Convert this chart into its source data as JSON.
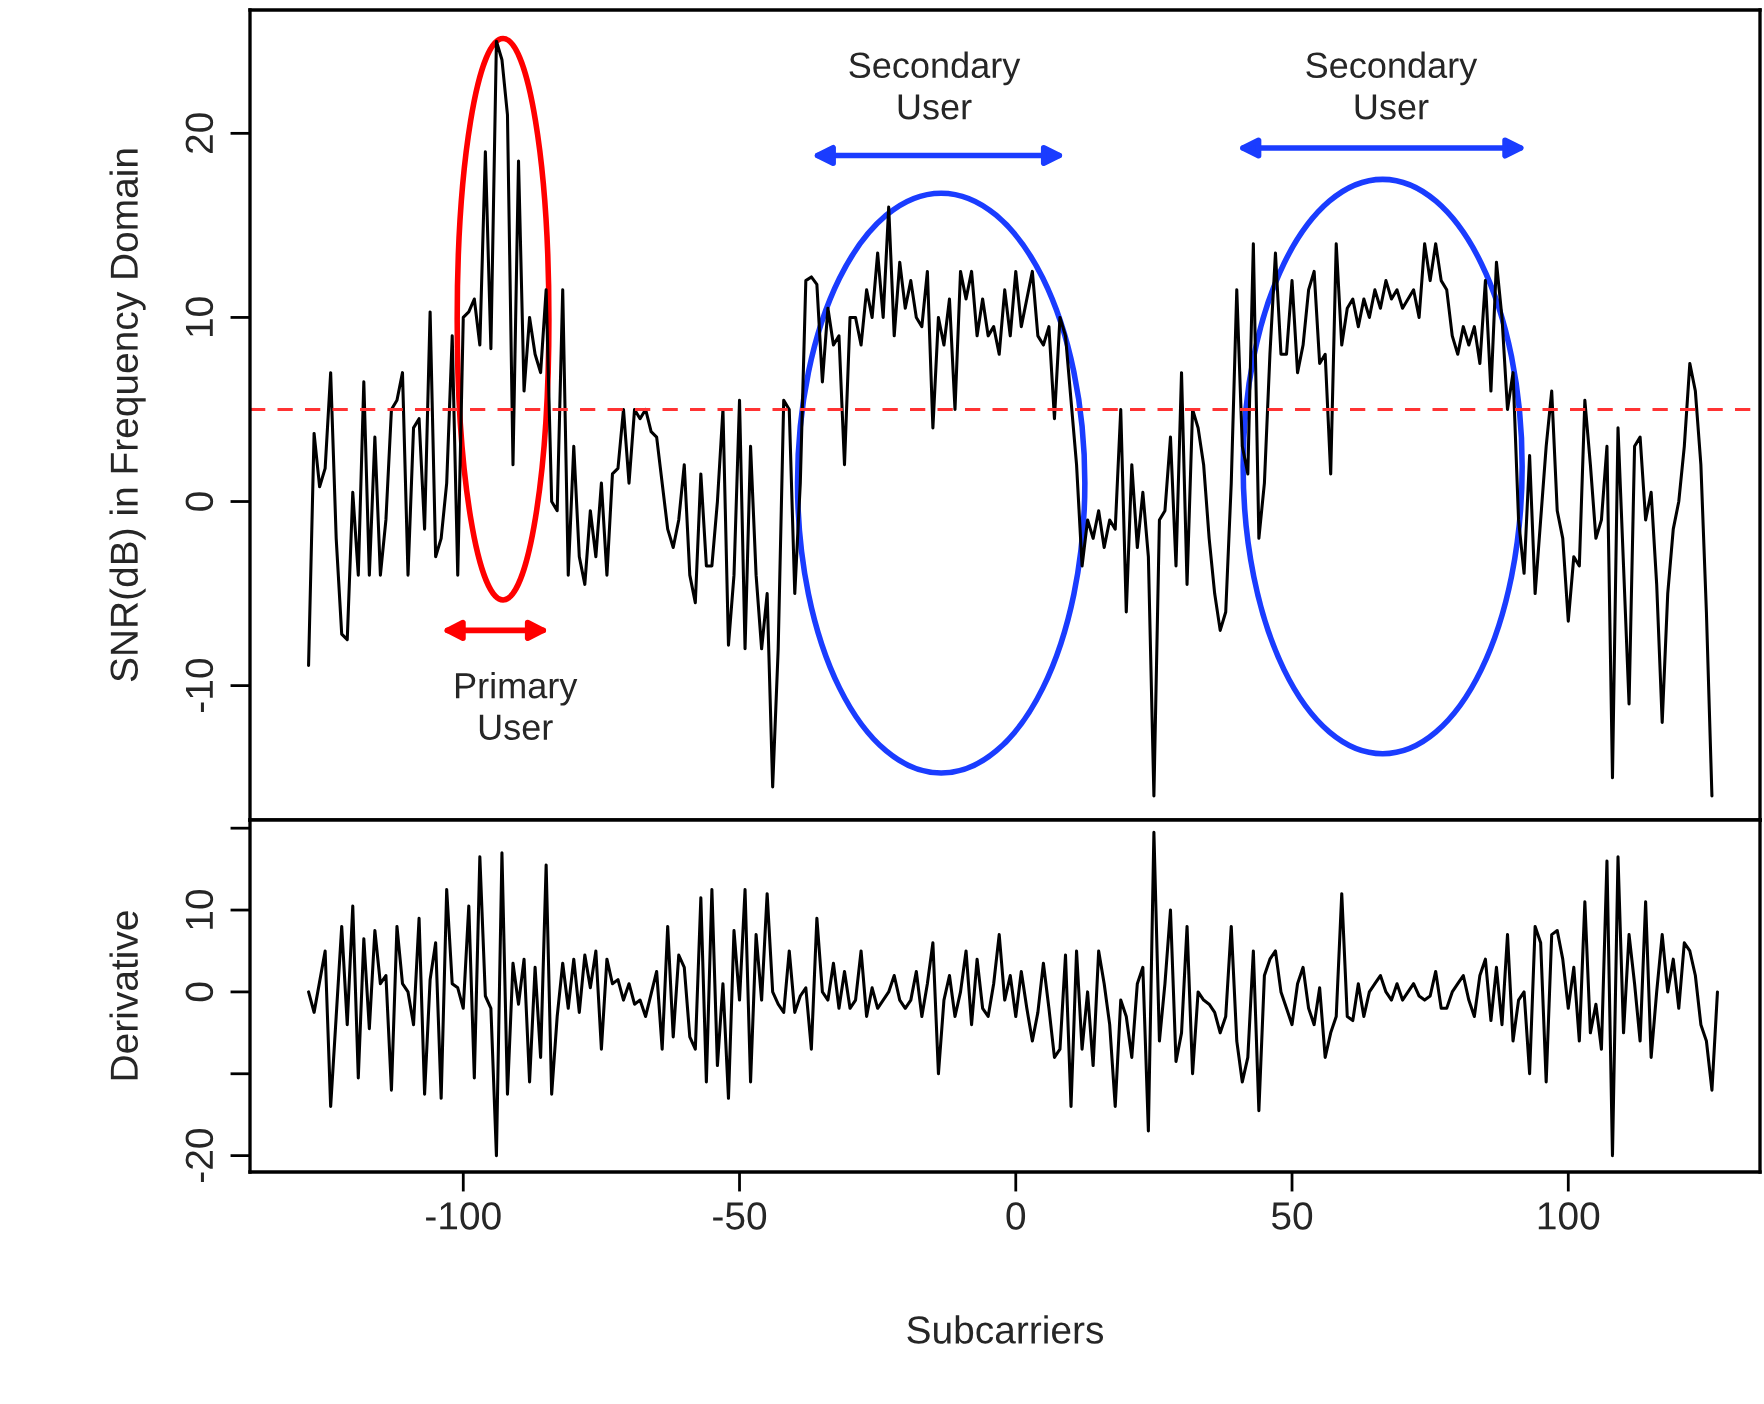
{
  "chart_data": [
    {
      "type": "line",
      "ylabel": "SNR(dB) in Frequency Domain",
      "xlim": [
        -138.6,
        134.7
      ],
      "ylim": [
        -17.3,
        26.7
      ],
      "yticks": [
        -10,
        0,
        10,
        20
      ],
      "tick_labels": "y",
      "grid": false,
      "legend": false,
      "series": [
        {
          "color": "#000000",
          "x": [
            -128,
            -127,
            -126,
            -125,
            -124,
            -123,
            -122,
            -121,
            -120,
            -119,
            -118,
            -117,
            -116,
            -115,
            -114,
            -113,
            -112,
            -111,
            -110,
            -109,
            -108,
            -107,
            -106,
            -105,
            -104,
            -103,
            -102,
            -101,
            -100,
            -99,
            -98,
            -97,
            -96,
            -95,
            -94,
            -93,
            -92,
            -91,
            -90,
            -89,
            -88,
            -87,
            -86,
            -85,
            -84,
            -83,
            -82,
            -81,
            -80,
            -79,
            -78,
            -77,
            -76,
            -75,
            -74,
            -73,
            -72,
            -71,
            -70,
            -69,
            -68,
            -67,
            -66,
            -65,
            -63,
            -62,
            -61,
            -60,
            -59,
            -58,
            -57,
            -56,
            -55,
            -54,
            -53,
            -52,
            -51,
            -50,
            -49,
            -48,
            -47,
            -46,
            -45,
            -44,
            -43,
            -42,
            -41,
            -40,
            -39,
            -38,
            -37,
            -36,
            -35,
            -34,
            -33,
            -32,
            -31,
            -30,
            -29,
            -28,
            -27,
            -26,
            -25,
            -24,
            -23,
            -22,
            -21,
            -20,
            -19,
            -18,
            -17,
            -16,
            -15,
            -14,
            -13,
            -12,
            -11,
            -10,
            -9,
            -8,
            -7,
            -6,
            -5,
            -4,
            -3,
            -2,
            -1,
            0,
            1,
            2,
            3,
            4,
            5,
            6,
            7,
            8,
            9,
            10,
            11,
            12,
            13,
            14,
            15,
            16,
            17,
            18,
            19,
            20,
            21,
            22,
            23,
            24,
            25,
            26,
            27,
            28,
            29,
            30,
            31,
            32,
            33,
            34,
            35,
            36,
            37,
            38,
            39,
            40,
            41,
            42,
            43,
            44,
            45,
            46,
            47,
            48,
            49,
            50,
            51,
            52,
            53,
            54,
            55,
            56,
            57,
            58,
            59,
            60,
            61,
            62,
            63,
            64,
            65,
            66,
            67,
            68,
            69,
            70,
            71,
            72,
            73,
            74,
            75,
            76,
            77,
            78,
            79,
            80,
            81,
            82,
            83,
            84,
            85,
            86,
            87,
            88,
            89,
            90,
            91,
            92,
            93,
            94,
            95,
            96,
            97,
            98,
            99,
            100,
            101,
            102,
            103,
            104,
            105,
            106,
            107,
            108,
            109,
            110,
            111,
            112,
            113,
            114,
            115,
            116,
            117,
            118,
            119,
            120,
            121,
            122,
            123,
            124,
            125,
            126
          ],
          "values": [
            -8.9,
            3.7,
            0.8,
            1.8,
            7,
            -2,
            -7.2,
            -7.5,
            0.5,
            -4,
            6.5,
            -4,
            3.5,
            -4,
            -1,
            5,
            5.5,
            7,
            -4,
            4,
            4.5,
            -1.5,
            10.3,
            -3,
            -2,
            1,
            9,
            -4,
            10,
            10.3,
            11,
            8.5,
            19,
            8.3,
            25,
            24,
            21,
            2,
            18.5,
            6,
            10,
            8,
            7,
            11.5,
            0,
            -0.5,
            11.5,
            -4,
            3,
            -3,
            -4.5,
            -0.5,
            -3,
            1,
            -4,
            1.5,
            1.8,
            5,
            1,
            5,
            4.5,
            5,
            3.8,
            3.5,
            -1.5,
            -2.5,
            -1,
            2,
            -4,
            -5.5,
            1.5,
            -3.5,
            -3.5,
            0,
            5,
            -7.8,
            -4,
            5.5,
            -8,
            3,
            -4,
            -8,
            -5,
            -15.5,
            -8,
            5.5,
            5,
            -5,
            1,
            12,
            12.2,
            11.8,
            6.5,
            10.5,
            8.5,
            9,
            2,
            10,
            10,
            8.5,
            11.5,
            10,
            13.5,
            10,
            16,
            9,
            13,
            10.5,
            12,
            10,
            9.5,
            12.5,
            4,
            10,
            8.5,
            11,
            5,
            12.5,
            11,
            12.5,
            9,
            11,
            9,
            9.5,
            8,
            11.5,
            9,
            12.5,
            9.5,
            11,
            12.5,
            9,
            8.5,
            9.5,
            4.5,
            10,
            9,
            5.5,
            2,
            -3.5,
            -1,
            -2,
            -0.5,
            -2.5,
            -1,
            -1.5,
            5,
            -6,
            2,
            -2.5,
            0.5,
            -3,
            -16,
            -1,
            -0.5,
            3.5,
            -3.5,
            7,
            -4.5,
            5,
            4,
            2,
            -2,
            -5,
            -7,
            -6,
            1,
            11.5,
            3,
            1.5,
            14,
            -2,
            1,
            8,
            13.5,
            8,
            8,
            12,
            7,
            8.5,
            11.5,
            12.5,
            7.5,
            8,
            1.5,
            14,
            8.5,
            10.5,
            11,
            9.5,
            11,
            10,
            11.5,
            10.5,
            12,
            11,
            11.5,
            10.5,
            11,
            11.5,
            10,
            14,
            12,
            14,
            12,
            11.5,
            9,
            8,
            9.5,
            8.5,
            9.5,
            7.5,
            12,
            6,
            13,
            10,
            5,
            7,
            -1,
            -3.9,
            2.5,
            -5,
            -1,
            3,
            6,
            -0.5,
            -2,
            -6.5,
            -3,
            -3.5,
            5.5,
            2,
            -2,
            -1,
            3,
            -15,
            4,
            -3.5,
            -11,
            3,
            3.5,
            -1,
            0.5,
            -4.5,
            -12,
            -5,
            -1.5,
            0,
            3,
            7.5,
            6,
            2,
            -6,
            -16
          ]
        }
      ],
      "ref_lines": [
        {
          "axis": "y",
          "value": 5,
          "color": "#ff3333",
          "line_style": "dashed"
        }
      ],
      "annotations": [
        "Primary\nUser",
        "Secondary\nUser",
        "Secondary\nUser"
      ]
    },
    {
      "type": "line",
      "xlabel": "Subcarriers",
      "ylabel": "Derivative",
      "xlim": [
        -138.6,
        134.7
      ],
      "ylim": [
        -22,
        21
      ],
      "xticks": [
        -100,
        -50,
        0,
        50,
        100
      ],
      "yticks": [
        -20,
        {
          "value": -10,
          "label": null
        },
        0,
        10,
        {
          "value": 20,
          "label": null
        }
      ],
      "grid": false,
      "legend": false,
      "series": [
        {
          "color": "#000000",
          "x": [
            -128,
            -127,
            -125,
            -124,
            -123,
            -122,
            -121,
            -120,
            -119,
            -118,
            -117,
            -116,
            -115,
            -114,
            -113,
            -112,
            -111,
            -110,
            -109,
            -108,
            -107,
            -106,
            -105,
            -104,
            -103,
            -102,
            -101,
            -100,
            -99,
            -98,
            -97,
            -96,
            -95,
            -94,
            -93,
            -92,
            -91,
            -90,
            -89,
            -88,
            -87,
            -86,
            -85,
            -84,
            -83,
            -82,
            -81,
            -80,
            -79,
            -78,
            -77,
            -76,
            -75,
            -74,
            -73,
            -72,
            -71,
            -70,
            -69,
            -68,
            -67,
            -65,
            -64,
            -63,
            -62,
            -61,
            -60,
            -59,
            -58,
            -57,
            -56,
            -55,
            -54,
            -53,
            -52,
            -51,
            -50,
            -49,
            -48,
            -47,
            -46,
            -45,
            -44,
            -43,
            -42,
            -41,
            -40,
            -39,
            -38,
            -37,
            -36,
            -35,
            -34,
            -33,
            -32,
            -31,
            -30,
            -29,
            -28,
            -27,
            -26,
            -25,
            -24,
            -23,
            -22,
            -21,
            -20,
            -19,
            -18,
            -17,
            -16,
            -15,
            -14,
            -13,
            -12,
            -11,
            -10,
            -9,
            -8,
            -7,
            -6,
            -5,
            -4,
            -3,
            -2,
            -1,
            0,
            1,
            2,
            3,
            4,
            5,
            6,
            7,
            8,
            9,
            10,
            11,
            12,
            13,
            14,
            15,
            16,
            17,
            18,
            19,
            20,
            21,
            22,
            23,
            24,
            25,
            26,
            27,
            28,
            29,
            30,
            31,
            32,
            33,
            34,
            35,
            36,
            37,
            38,
            39,
            40,
            41,
            42,
            43,
            44,
            45,
            46,
            47,
            48,
            49,
            50,
            51,
            52,
            53,
            54,
            55,
            56,
            57,
            58,
            59,
            60,
            61,
            62,
            63,
            64,
            65,
            66,
            67,
            68,
            69,
            70,
            71,
            72,
            73,
            74,
            75,
            76,
            77,
            78,
            79,
            80,
            81,
            82,
            83,
            84,
            85,
            86,
            87,
            88,
            89,
            90,
            91,
            92,
            93,
            94,
            95,
            96,
            97,
            98,
            99,
            100,
            101,
            102,
            103,
            104,
            105,
            106,
            107,
            108,
            109,
            110,
            111,
            112,
            113,
            114,
            115,
            116,
            117,
            118,
            119,
            120,
            121,
            122,
            123,
            124,
            125,
            126,
            127
          ],
          "values": [
            0,
            -2.5,
            5,
            -14,
            -3,
            8,
            -4,
            10.5,
            -10.5,
            6.5,
            -4.5,
            7.5,
            1,
            2,
            -12,
            8,
            1,
            0,
            -4,
            9,
            -12.5,
            1.5,
            6,
            -13,
            12.5,
            1,
            0.5,
            -2,
            10.5,
            -10.5,
            16.5,
            -0.5,
            -2,
            -20,
            17,
            -12.5,
            3.5,
            -1.5,
            4,
            -11,
            3,
            -8,
            15.5,
            -12.5,
            -3,
            3.5,
            -2,
            4,
            -2.5,
            4.5,
            0.5,
            5,
            -7,
            4,
            1,
            1.5,
            -1,
            1,
            -1.5,
            -1,
            -3,
            2.5,
            -7,
            8,
            -5.5,
            4.5,
            3,
            -5.5,
            -7,
            11.5,
            -11,
            12.5,
            -9,
            1,
            -13,
            7.5,
            -1,
            12.5,
            -11,
            7,
            -1,
            12,
            0,
            -1.5,
            -2.5,
            5,
            -2.5,
            -0.5,
            0.5,
            -7,
            9,
            0,
            -1,
            3.5,
            -2,
            2.5,
            -2,
            -1,
            5,
            -3,
            0.5,
            -2,
            -1,
            0,
            2,
            -1,
            -2,
            -1,
            2.5,
            -3,
            1,
            6,
            -10,
            -1,
            2,
            -3,
            0,
            5,
            -4,
            4,
            -2,
            -3,
            1,
            7,
            -1,
            2,
            -3,
            2.5,
            -2,
            -6,
            -2.5,
            3.5,
            -2,
            -8,
            -7,
            4.5,
            -14,
            5,
            -7,
            0,
            -9,
            5,
            1,
            -4,
            -14,
            -1,
            -3,
            -8,
            1,
            3,
            -17,
            19.5,
            -6,
            1,
            10,
            -8.5,
            -5,
            8,
            -10,
            0,
            -1,
            -1.5,
            -2.5,
            -5,
            -3,
            8,
            -6,
            -11,
            -8,
            5,
            -14.5,
            2,
            4,
            5,
            0,
            -2,
            -4,
            1,
            3,
            -2,
            -4,
            0.5,
            -8,
            -5,
            -3,
            12,
            -3,
            -3.5,
            1,
            -3,
            0,
            1,
            2,
            0,
            -1,
            1,
            -1,
            0,
            1,
            -0.5,
            -1,
            -0.5,
            2.5,
            -2,
            -2,
            0,
            1,
            2,
            -1,
            -3,
            2,
            4,
            -3.5,
            3,
            -4,
            7,
            -6,
            -1,
            0,
            -10,
            8,
            6,
            -11,
            7,
            7.5,
            4,
            -2,
            3,
            -6,
            11,
            -5,
            -1.5,
            -7,
            16,
            -20,
            16.5,
            -5,
            7,
            1,
            -6,
            11,
            -8,
            0,
            7,
            0,
            4,
            -2,
            6,
            5,
            2,
            -4,
            -6,
            -12,
            0
          ]
        }
      ]
    }
  ]
}
